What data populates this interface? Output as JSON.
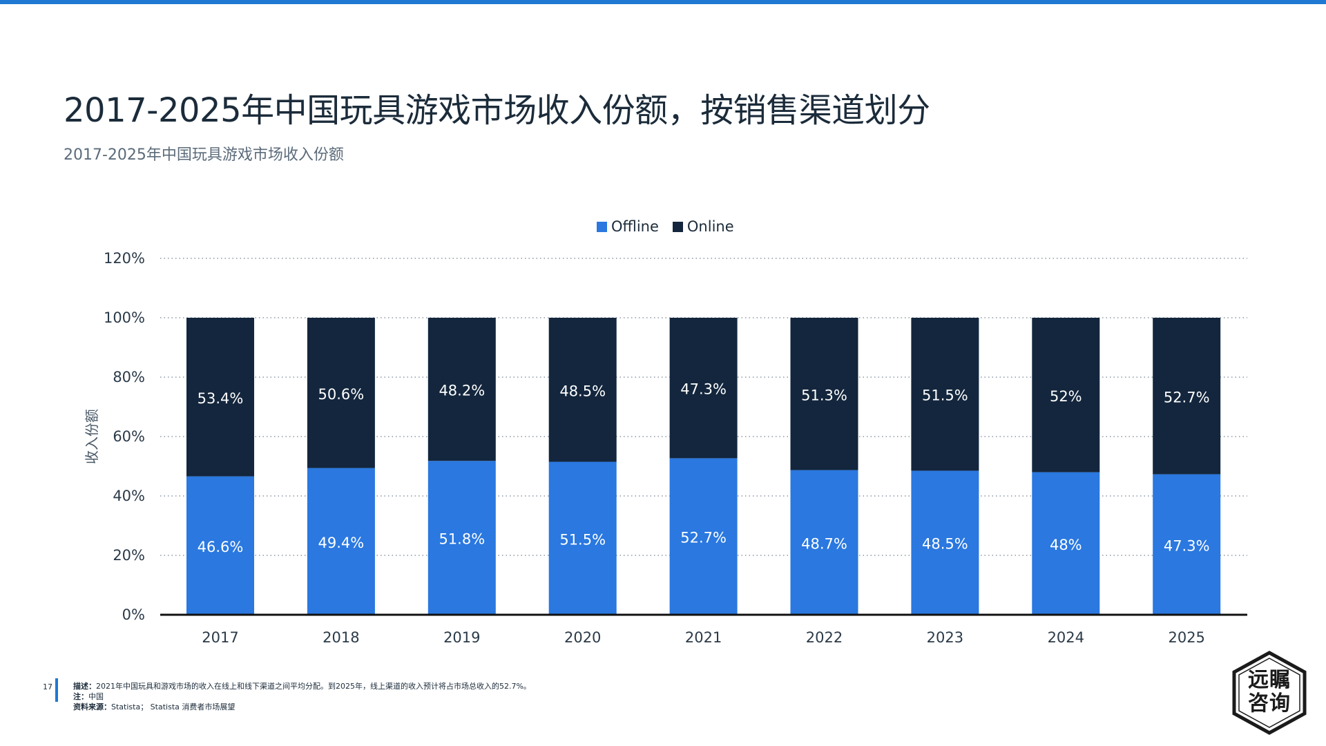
{
  "header": {
    "title": "2017-2025年中国玩具游戏市场收入份额，按销售渠道划分",
    "subtitle": "2017-2025年中国玩具游戏市场收入份额"
  },
  "chart_data": {
    "type": "bar",
    "stacked": true,
    "categories": [
      "2017",
      "2018",
      "2019",
      "2020",
      "2021",
      "2022",
      "2023",
      "2024",
      "2025"
    ],
    "series": [
      {
        "name": "Offline",
        "color": "#2a78e0",
        "values": [
          46.6,
          49.4,
          51.8,
          51.5,
          52.7,
          48.7,
          48.5,
          48,
          47.3
        ],
        "labels": [
          "46.6%",
          "49.4%",
          "51.8%",
          "51.5%",
          "52.7%",
          "48.7%",
          "48.5%",
          "48%",
          "47.3%"
        ]
      },
      {
        "name": "Online",
        "color": "#13263d",
        "values": [
          53.4,
          50.6,
          48.2,
          48.5,
          47.3,
          51.3,
          51.5,
          52,
          52.7
        ],
        "labels": [
          "53.4%",
          "50.6%",
          "48.2%",
          "48.5%",
          "47.3%",
          "51.3%",
          "51.5%",
          "52%",
          "52.7%"
        ]
      }
    ],
    "ylabel": "收入份额",
    "ylim": [
      0,
      120
    ],
    "yticks": [
      0,
      20,
      40,
      60,
      80,
      100,
      120
    ],
    "ytick_labels": [
      "0%",
      "20%",
      "40%",
      "60%",
      "80%",
      "100%",
      "120%"
    ],
    "grid": true,
    "legend_position": "top-center"
  },
  "footer": {
    "page_number": "17",
    "description_label": "描述：",
    "description": "2021年中国玩具和游戏市场的收入在线上和线下渠道之间平均分配。到2025年，线上渠道的收入预计将占市场总收入的52.7%。",
    "note_label": "注：",
    "note": "中国",
    "source_label": "资料来源：",
    "source": "Statista；  Statista 消费者市场展望"
  },
  "logo": {
    "text_line1": "远瞩",
    "text_line2": "咨询"
  }
}
